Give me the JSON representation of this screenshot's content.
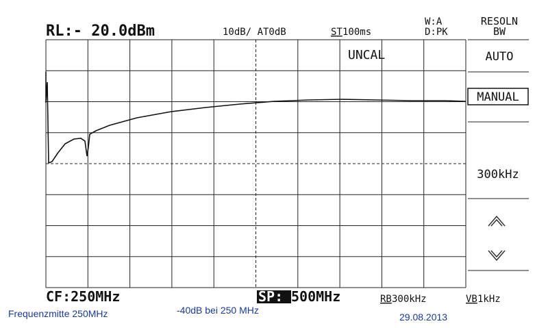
{
  "header": {
    "reference_level": "RL:- 20.0dBm",
    "scale_attenuation": "10dB/ AT0dB",
    "sweep_time_key": "ST",
    "sweep_time_value": "100ms",
    "write_mode": "W:A",
    "detector": "D:PK"
  },
  "screen": {
    "status": "UNCAL"
  },
  "softkeys": {
    "title_line1": "RESOLN",
    "title_line2": "BW",
    "auto": "AUTO",
    "manual": "MANUAL",
    "value": "300kHz"
  },
  "footer": {
    "center_frequency": "CF:250MHz",
    "span_key": "SP:",
    "span_value": "500MHz",
    "rbw_key": "RB",
    "rbw_value": "300kHz",
    "vbw_key": "VB",
    "vbw_value": "1kHz"
  },
  "annotations": {
    "center_note": "Frequenzmitte  250MHz",
    "level_note": "-40dB  bei 250 MHz",
    "date": "29.08.2013"
  }
}
